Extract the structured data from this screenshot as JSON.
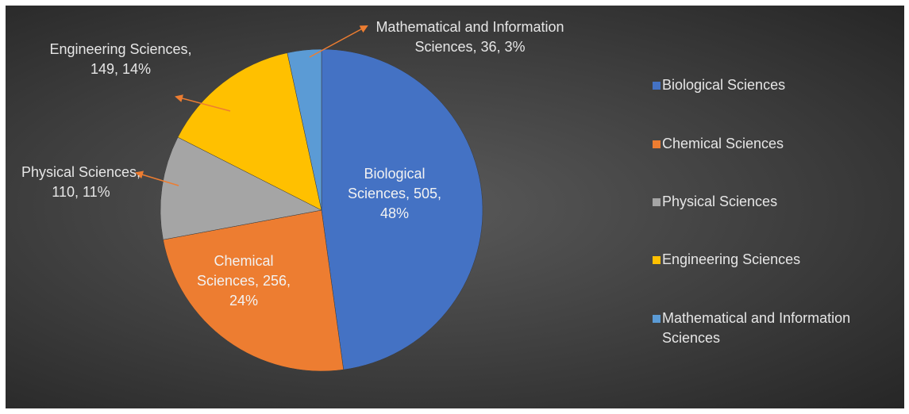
{
  "chart_data": {
    "type": "pie",
    "categories": [
      "Biological Sciences",
      "Chemical Sciences",
      "Physical Sciences",
      "Engineering Sciences",
      "Mathematical and Information Sciences"
    ],
    "values": [
      505,
      256,
      110,
      149,
      36
    ],
    "value_labels": [
      "Biological Sciences, 505, 48%",
      "Chemical Sciences, 256, 24%",
      "Physical Sciences, 110, 11%",
      "Engineering Sciences, 149, 14%",
      "Mathematical and Information Sciences, 36, 3%"
    ],
    "colors": [
      "#4472c4",
      "#ed7d31",
      "#a5a5a5",
      "#ffc000",
      "#5b9bd5"
    ],
    "legend": "right"
  }
}
